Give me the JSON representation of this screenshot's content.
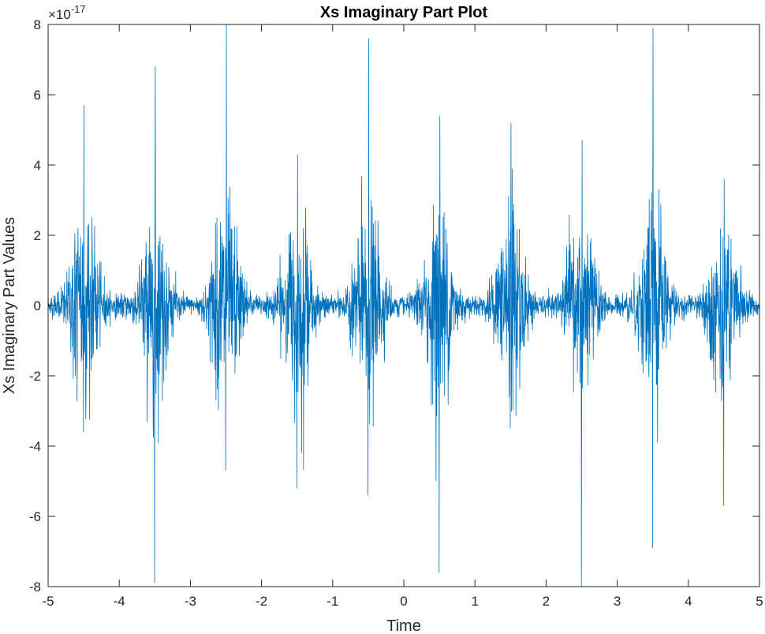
{
  "chart_data": {
    "type": "line",
    "title": "Xs Imaginary Part Plot",
    "xlabel": "Time",
    "ylabel": "Xs Imaginary Part Values",
    "xlim": [
      -5,
      5
    ],
    "ylim": [
      -8,
      8
    ],
    "y_exponent_label": "×10",
    "y_exponent_power": "-17",
    "xticks": [
      "-5",
      "-4",
      "-3",
      "-2",
      "-1",
      "0",
      "1",
      "2",
      "3",
      "4",
      "5"
    ],
    "yticks": [
      "8",
      "6",
      "4",
      "2",
      "0",
      "-2",
      "-4",
      "-6",
      "-8"
    ],
    "grid": false,
    "color": "#0072BD",
    "bursts": [
      {
        "center": -4.5,
        "max": 5.7,
        "min": -3.6
      },
      {
        "center": -3.5,
        "max": 6.8,
        "min": -7.9
      },
      {
        "center": -2.5,
        "max": 8.0,
        "min": -4.7
      },
      {
        "center": -1.5,
        "max": 4.3,
        "min": -5.2
      },
      {
        "center": -0.5,
        "max": 7.6,
        "min": -5.4
      },
      {
        "center": 0.5,
        "max": 5.4,
        "min": -7.6
      },
      {
        "center": 1.5,
        "max": 5.2,
        "min": -3.5
      },
      {
        "center": 2.5,
        "max": 4.7,
        "min": -8.0
      },
      {
        "center": 3.5,
        "max": 7.9,
        "min": -6.9
      },
      {
        "center": 4.5,
        "max": 3.6,
        "min": -5.7
      }
    ],
    "burst_typical_amplitude": 3.0,
    "burst_half_width": 0.5
  }
}
